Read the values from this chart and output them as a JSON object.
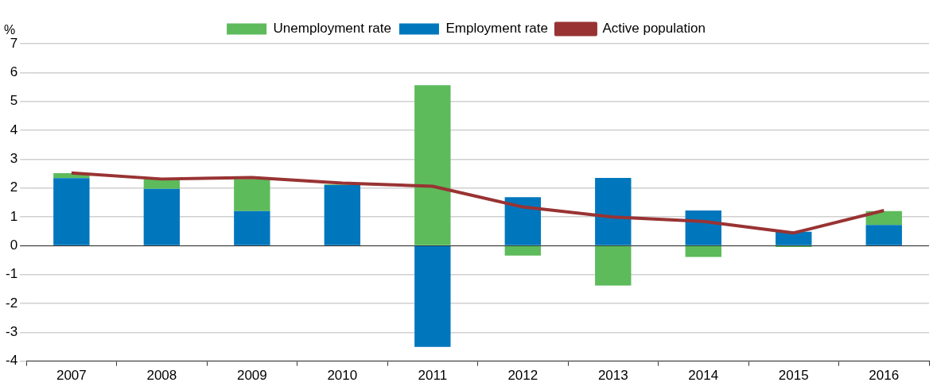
{
  "chart_data": {
    "type": "bar",
    "stacked": true,
    "ylabel": "%",
    "categories": [
      "2007",
      "2008",
      "2009",
      "2010",
      "2011",
      "2012",
      "2013",
      "2014",
      "2015",
      "2016"
    ],
    "series": [
      {
        "name": "Employment rate",
        "color": "#0077bd",
        "values": [
          2.34,
          1.97,
          1.2,
          2.1,
          -3.51,
          1.68,
          2.35,
          1.22,
          0.48,
          0.72
        ]
      },
      {
        "name": "Unemployment rate",
        "color": "#5dbb5b",
        "values": [
          0.17,
          0.34,
          1.11,
          0.02,
          5.56,
          -0.34,
          -1.38,
          -0.39,
          -0.05,
          0.48
        ]
      },
      {
        "name": "Active population",
        "type": "line",
        "color": "#993333",
        "values": [
          2.52,
          2.31,
          2.36,
          2.17,
          2.06,
          1.34,
          0.99,
          0.84,
          0.44,
          1.22
        ]
      }
    ],
    "ylim": [
      -4,
      7
    ],
    "yticks": [
      -4,
      -3,
      -2,
      -1,
      0,
      1,
      2,
      3,
      4,
      5,
      6,
      7
    ],
    "grid": "y",
    "legend": "top"
  }
}
